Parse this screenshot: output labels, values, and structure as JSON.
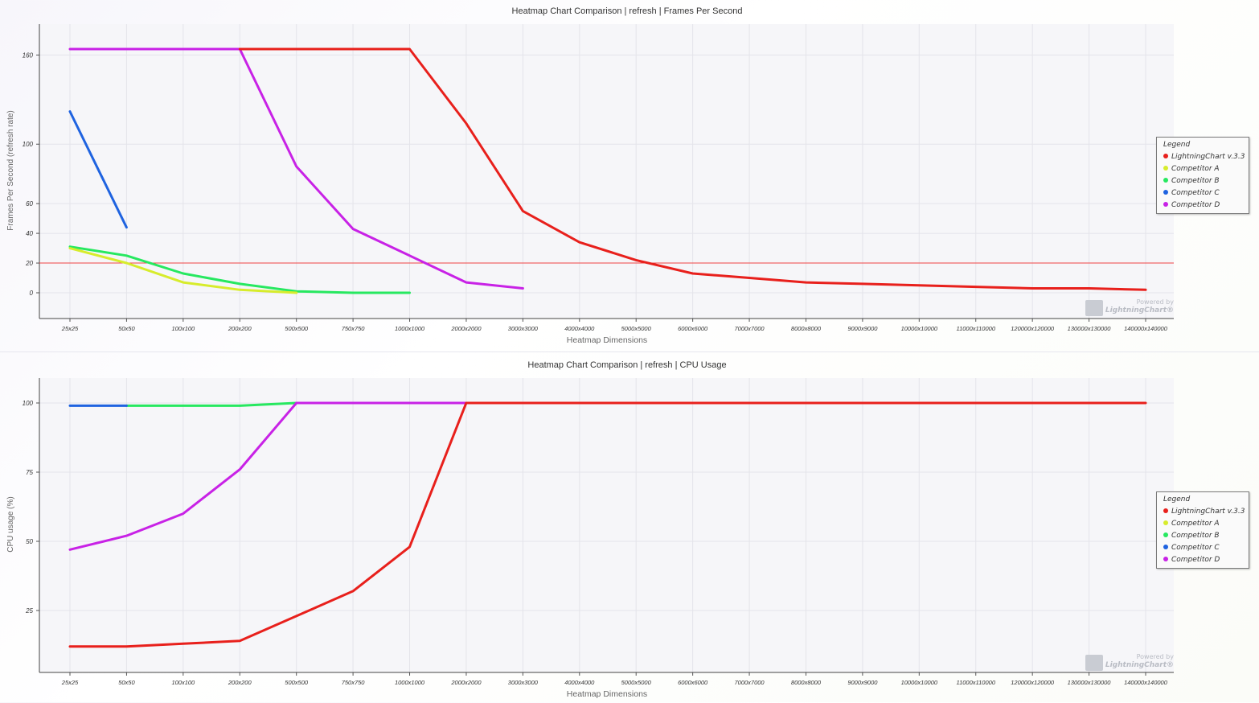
{
  "colors": {
    "lightningchart": "#e8201c",
    "competitor_a": "#d7ec2c",
    "competitor_b": "#27e860",
    "competitor_c": "#1f63e0",
    "competitor_d": "#c822e6",
    "threshold": "#f04444"
  },
  "watermark": {
    "line1": "Powered by",
    "line2": "LightningChart®"
  },
  "chart_data": [
    {
      "type": "line",
      "title": "Heatmap Chart Comparison | refresh | Frames Per Second",
      "xlabel": "Heatmap Dimensions",
      "ylabel": "Frames Per Second (refresh rate)",
      "categories": [
        "25x25",
        "50x50",
        "100x100",
        "200x200",
        "500x500",
        "750x750",
        "1000x1000",
        "2000x2000",
        "3000x3000",
        "4000x4000",
        "5000x5000",
        "6000x6000",
        "7000x7000",
        "8000x8000",
        "9000x9000",
        "10000x10000",
        "11000x110000",
        "120000x120000",
        "130000x130000",
        "140000x140000"
      ],
      "yticks": [
        160,
        100,
        60,
        40,
        20,
        0
      ],
      "ylim": [
        -15,
        180
      ],
      "threshold": 20,
      "legend": {
        "title": "Legend",
        "position": "right"
      },
      "series": [
        {
          "name": "LightningChart v.3.3",
          "color": "#e8201c",
          "values": [
            null,
            null,
            null,
            164,
            164,
            164,
            164,
            114,
            55,
            34,
            22,
            13,
            10,
            7,
            6,
            5,
            4,
            3,
            3,
            2
          ]
        },
        {
          "name": "Competitor A",
          "color": "#d7ec2c",
          "values": [
            30,
            20,
            7,
            2,
            0,
            null,
            null,
            null,
            null,
            null,
            null,
            null,
            null,
            null,
            null,
            null,
            null,
            null,
            null,
            null
          ]
        },
        {
          "name": "Competitor B",
          "color": "#27e860",
          "values": [
            31,
            25,
            13,
            6,
            1,
            0,
            0,
            null,
            null,
            null,
            null,
            null,
            null,
            null,
            null,
            null,
            null,
            null,
            null,
            null
          ]
        },
        {
          "name": "Competitor C",
          "color": "#1f63e0",
          "values": [
            122,
            44,
            null,
            null,
            null,
            null,
            null,
            null,
            null,
            null,
            null,
            null,
            null,
            null,
            null,
            null,
            null,
            null,
            null,
            null
          ]
        },
        {
          "name": "Competitor D",
          "color": "#c822e6",
          "values": [
            164,
            164,
            164,
            164,
            85,
            43,
            25,
            7,
            3,
            null,
            null,
            null,
            null,
            null,
            null,
            null,
            null,
            null,
            null,
            null
          ]
        }
      ]
    },
    {
      "type": "line",
      "title": "Heatmap Chart Comparison | refresh | CPU Usage",
      "xlabel": "Heatmap Dimensions",
      "ylabel": "CPU usage (%)",
      "categories": [
        "25x25",
        "50x50",
        "100x100",
        "200x200",
        "500x500",
        "750x750",
        "1000x1000",
        "2000x2000",
        "3000x3000",
        "4000x4000",
        "5000x5000",
        "6000x6000",
        "7000x7000",
        "8000x8000",
        "9000x9000",
        "10000x10000",
        "11000x110000",
        "120000x120000",
        "130000x130000",
        "140000x140000"
      ],
      "yticks": [
        100,
        75,
        50,
        25
      ],
      "ylim": [
        3,
        109
      ],
      "legend": {
        "title": "Legend",
        "position": "right"
      },
      "series": [
        {
          "name": "LightningChart v.3.3",
          "color": "#e8201c",
          "values": [
            12,
            12,
            13,
            14,
            23,
            32,
            48,
            100,
            100,
            100,
            100,
            100,
            100,
            100,
            100,
            100,
            100,
            100,
            100,
            100
          ]
        },
        {
          "name": "Competitor A",
          "color": "#d7ec2c",
          "values": [
            null,
            null,
            null,
            null,
            null,
            null,
            null,
            null,
            null,
            null,
            null,
            null,
            null,
            null,
            null,
            null,
            null,
            null,
            null,
            null
          ]
        },
        {
          "name": "Competitor B",
          "color": "#27e860",
          "values": [
            null,
            99,
            99,
            99,
            100,
            null,
            null,
            null,
            null,
            null,
            null,
            null,
            null,
            null,
            null,
            null,
            null,
            null,
            null,
            null
          ]
        },
        {
          "name": "Competitor C",
          "color": "#1f63e0",
          "values": [
            99,
            99,
            null,
            null,
            null,
            null,
            null,
            null,
            null,
            null,
            null,
            null,
            null,
            null,
            null,
            null,
            null,
            null,
            null,
            null
          ]
        },
        {
          "name": "Competitor D",
          "color": "#c822e6",
          "values": [
            47,
            52,
            60,
            76,
            100,
            100,
            100,
            100,
            100,
            null,
            null,
            null,
            null,
            null,
            null,
            null,
            null,
            null,
            null,
            null
          ]
        }
      ]
    }
  ]
}
